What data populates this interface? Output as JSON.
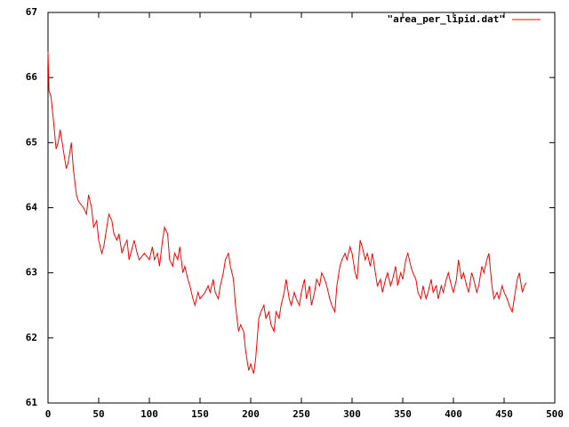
{
  "chart_data": {
    "type": "line",
    "x": [
      0,
      1,
      3,
      5,
      8,
      10,
      12,
      15,
      18,
      20,
      23,
      25,
      28,
      30,
      35,
      38,
      40,
      43,
      45,
      48,
      50,
      53,
      55,
      58,
      60,
      63,
      65,
      68,
      70,
      73,
      75,
      78,
      80,
      85,
      88,
      90,
      95,
      100,
      103,
      105,
      108,
      110,
      113,
      115,
      118,
      120,
      123,
      125,
      128,
      130,
      133,
      135,
      138,
      140,
      143,
      145,
      148,
      150,
      155,
      158,
      160,
      163,
      165,
      168,
      170,
      173,
      175,
      178,
      180,
      183,
      185,
      188,
      190,
      193,
      195,
      198,
      200,
      203,
      205,
      208,
      210,
      213,
      215,
      218,
      220,
      223,
      225,
      228,
      230,
      233,
      235,
      238,
      240,
      243,
      245,
      248,
      250,
      253,
      255,
      258,
      260,
      263,
      265,
      268,
      270,
      273,
      275,
      278,
      280,
      283,
      285,
      288,
      290,
      293,
      295,
      298,
      300,
      303,
      305,
      308,
      310,
      313,
      315,
      318,
      320,
      323,
      325,
      328,
      330,
      333,
      335,
      338,
      340,
      343,
      345,
      348,
      350,
      353,
      355,
      358,
      360,
      363,
      365,
      368,
      370,
      373,
      375,
      378,
      380,
      383,
      385,
      388,
      390,
      393,
      395,
      398,
      400,
      403,
      405,
      408,
      410,
      413,
      415,
      418,
      420,
      423,
      425,
      428,
      430,
      433,
      435,
      438,
      440,
      443,
      445,
      448,
      450,
      453,
      455,
      458,
      460,
      463,
      465,
      468,
      470,
      472
    ],
    "series": [
      {
        "name": "\"area_per_lipid.dat\"",
        "color": "#ff0000",
        "values": [
          66.4,
          65.8,
          65.7,
          65.4,
          64.9,
          65.0,
          65.2,
          64.9,
          64.6,
          64.7,
          65.0,
          64.6,
          64.2,
          64.1,
          64.0,
          63.9,
          64.2,
          64.0,
          63.7,
          63.8,
          63.5,
          63.3,
          63.4,
          63.7,
          63.9,
          63.8,
          63.6,
          63.5,
          63.6,
          63.3,
          63.4,
          63.5,
          63.2,
          63.5,
          63.3,
          63.2,
          63.3,
          63.2,
          63.4,
          63.2,
          63.3,
          63.1,
          63.5,
          63.7,
          63.6,
          63.2,
          63.1,
          63.3,
          63.2,
          63.4,
          63.0,
          63.1,
          62.9,
          62.8,
          62.6,
          62.5,
          62.7,
          62.6,
          62.7,
          62.8,
          62.7,
          62.9,
          62.7,
          62.6,
          62.8,
          63.0,
          63.2,
          63.3,
          63.1,
          62.9,
          62.5,
          62.1,
          62.2,
          62.1,
          61.8,
          61.5,
          61.6,
          61.45,
          61.7,
          62.3,
          62.4,
          62.5,
          62.3,
          62.4,
          62.2,
          62.1,
          62.4,
          62.3,
          62.5,
          62.7,
          62.9,
          62.6,
          62.5,
          62.7,
          62.6,
          62.5,
          62.7,
          62.9,
          62.6,
          62.8,
          62.5,
          62.7,
          62.9,
          62.8,
          63.0,
          62.9,
          62.8,
          62.6,
          62.5,
          62.4,
          62.8,
          63.1,
          63.2,
          63.3,
          63.2,
          63.4,
          63.3,
          63.0,
          62.9,
          63.5,
          63.4,
          63.2,
          63.3,
          63.1,
          63.3,
          63.0,
          62.8,
          62.9,
          62.7,
          62.9,
          63.0,
          62.8,
          62.9,
          63.1,
          62.8,
          63.0,
          62.9,
          63.2,
          63.3,
          63.1,
          63.0,
          62.9,
          62.7,
          62.6,
          62.8,
          62.6,
          62.7,
          62.9,
          62.7,
          62.8,
          62.6,
          62.8,
          62.7,
          62.9,
          63.0,
          62.8,
          62.7,
          62.9,
          63.2,
          62.9,
          63.0,
          62.8,
          62.7,
          63.0,
          62.9,
          62.7,
          62.8,
          63.1,
          63.0,
          63.2,
          63.3,
          62.8,
          62.6,
          62.7,
          62.6,
          62.8,
          62.7,
          62.6,
          62.5,
          62.4,
          62.6,
          62.9,
          63.0,
          62.7,
          62.8,
          62.85
        ]
      }
    ],
    "xlim": [
      0,
      500
    ],
    "xticks": [
      0,
      50,
      100,
      150,
      200,
      250,
      300,
      350,
      400,
      450,
      500
    ],
    "ylim": [
      61,
      67
    ],
    "yticks": [
      61,
      62,
      63,
      64,
      65,
      66,
      67
    ],
    "grid": false,
    "legend": "top-right"
  }
}
